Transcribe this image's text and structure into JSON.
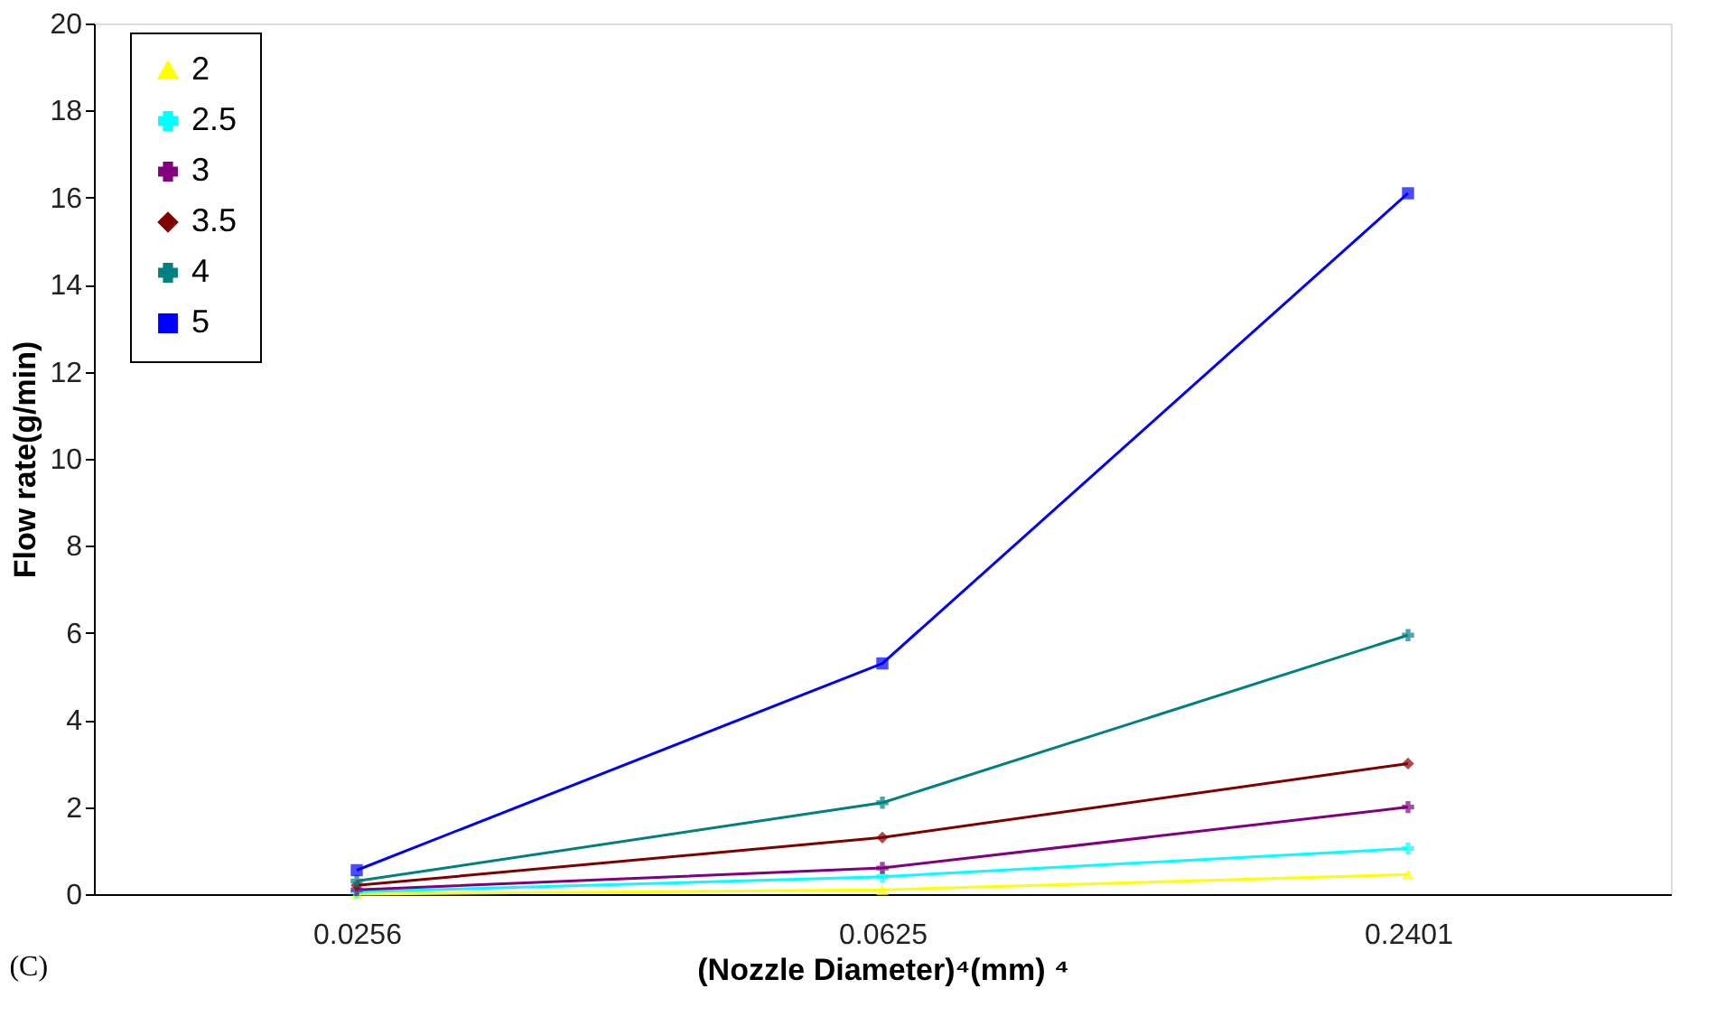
{
  "chart_data": {
    "type": "line",
    "xlabel": "(Nozzle Diameter)⁴(mm) ⁴",
    "ylabel": "Flow rate(g/min)",
    "categories": [
      "0.0256",
      "0.0625",
      "0.2401"
    ],
    "ylim": [
      0,
      20
    ],
    "yticks": [
      0,
      2,
      4,
      6,
      8,
      10,
      12,
      14,
      16,
      18,
      20
    ],
    "grid": false,
    "legend": "top left",
    "line_style": "solid",
    "annotations": [
      "(C)"
    ],
    "series": [
      {
        "name": "2",
        "color": "#ffff00",
        "marker": "triangle",
        "values": [
          0.0,
          0.1,
          0.45
        ]
      },
      {
        "name": "2.5",
        "color": "#00ffff",
        "marker": "cross",
        "values": [
          0.05,
          0.4,
          1.05
        ]
      },
      {
        "name": "3",
        "color": "#800080",
        "marker": "cross",
        "values": [
          0.1,
          0.6,
          2.0
        ]
      },
      {
        "name": "3.5",
        "color": "#800000",
        "marker": "diamond",
        "values": [
          0.2,
          1.3,
          3.0
        ]
      },
      {
        "name": "4",
        "color": "#008080",
        "marker": "cross",
        "values": [
          0.3,
          2.1,
          5.95
        ]
      },
      {
        "name": "5",
        "color": "#0000ff",
        "marker": "square",
        "values": [
          0.55,
          5.3,
          16.1
        ]
      }
    ]
  }
}
